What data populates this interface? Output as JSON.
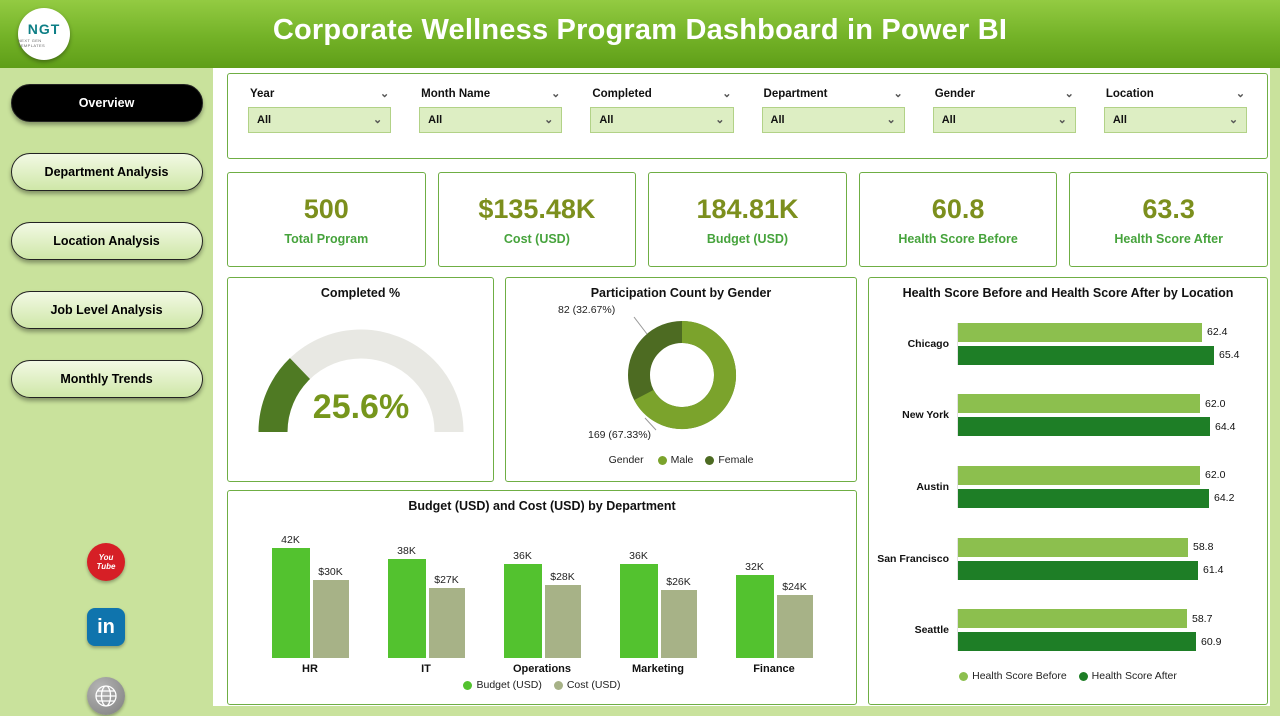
{
  "header": {
    "title": "Corporate Wellness Program Dashboard in Power BI",
    "logo_text": "NGT",
    "logo_subtext": "NEXT GEN TEMPLATES"
  },
  "icons": {
    "chevron_down": "⌄"
  },
  "theme": {
    "header_green": "#73b227",
    "sidebar_green": "#c9e29c",
    "card_border": "#6fae44",
    "kpi_value_color": "#7c8f1d",
    "kpi_label_color": "#46a33c"
  },
  "sidebar": {
    "nav": [
      {
        "label": "Overview",
        "active": true
      },
      {
        "label": "Department Analysis",
        "active": false
      },
      {
        "label": "Location Analysis",
        "active": false
      },
      {
        "label": "Job Level Analysis",
        "active": false
      },
      {
        "label": "Monthly Trends",
        "active": false
      }
    ],
    "social": {
      "youtube_line1": "You",
      "youtube_line2": "Tube",
      "linkedin_label": "in",
      "website_label": "website"
    }
  },
  "filters": {
    "items": [
      {
        "label": "Year",
        "value": "All"
      },
      {
        "label": "Month Name",
        "value": "All"
      },
      {
        "label": "Completed",
        "value": "All"
      },
      {
        "label": "Department",
        "value": "All"
      },
      {
        "label": "Gender",
        "value": "All"
      },
      {
        "label": "Location",
        "value": "All"
      }
    ]
  },
  "kpis": [
    {
      "value": "500",
      "label": "Total Program"
    },
    {
      "value": "$135.48K",
      "label": "Cost (USD)"
    },
    {
      "value": "184.81K",
      "label": "Budget (USD)"
    },
    {
      "value": "60.8",
      "label": "Health Score Before"
    },
    {
      "value": "63.3",
      "label": "Health Score After"
    }
  ],
  "chart_data": [
    {
      "id": "gauge",
      "type": "gauge",
      "title": "Completed %",
      "value": 25.6,
      "max": 100,
      "display": "25.6%",
      "colors": {
        "fill": "#4f7a23",
        "track": "#e8e8e3",
        "text": "#76961c"
      }
    },
    {
      "id": "donut",
      "type": "pie",
      "title": "Participation Count by Gender",
      "legend_title": "Gender",
      "slices": [
        {
          "label": "Male",
          "count": 169,
          "pct": 67.33,
          "display": "169 (67.33%)",
          "color": "#7ba32c"
        },
        {
          "label": "Female",
          "count": 82,
          "pct": 32.67,
          "display": "82 (32.67%)",
          "color": "#4d6b22"
        }
      ]
    },
    {
      "id": "budget_cost",
      "type": "bar",
      "title": "Budget (USD) and Cost (USD) by Department",
      "categories": [
        "HR",
        "IT",
        "Operations",
        "Marketing",
        "Finance"
      ],
      "series": [
        {
          "name": "Budget (USD)",
          "color": "#53c22f",
          "values": [
            42,
            38,
            36,
            36,
            32
          ],
          "labels": [
            "42K",
            "38K",
            "36K",
            "36K",
            "32K"
          ]
        },
        {
          "name": "Cost (USD)",
          "color": "#a7b287",
          "values": [
            30,
            27,
            28,
            26,
            24
          ],
          "labels": [
            "$30K",
            "$27K",
            "$28K",
            "$26K",
            "$24K"
          ]
        }
      ],
      "ymax": 46,
      "legend_position": "bottom"
    },
    {
      "id": "health_scores",
      "type": "bar-horizontal",
      "title": "Health Score Before and Health Score After by Location",
      "categories": [
        "Chicago",
        "New York",
        "Austin",
        "San Francisco",
        "Seattle"
      ],
      "series": [
        {
          "name": "Health Score Before",
          "color": "#8cbf4e",
          "values": [
            62.4,
            62.0,
            62.0,
            58.8,
            58.7
          ],
          "labels": [
            "62.4",
            "62.0",
            "62.0",
            "58.8",
            "58.7"
          ]
        },
        {
          "name": "Health Score After",
          "color": "#1e7e26",
          "values": [
            65.4,
            64.4,
            64.2,
            61.4,
            60.9
          ],
          "labels": [
            "65.4",
            "64.4",
            "64.2",
            "61.4",
            "60.9"
          ]
        }
      ],
      "xmax": 66,
      "legend_position": "bottom"
    }
  ]
}
